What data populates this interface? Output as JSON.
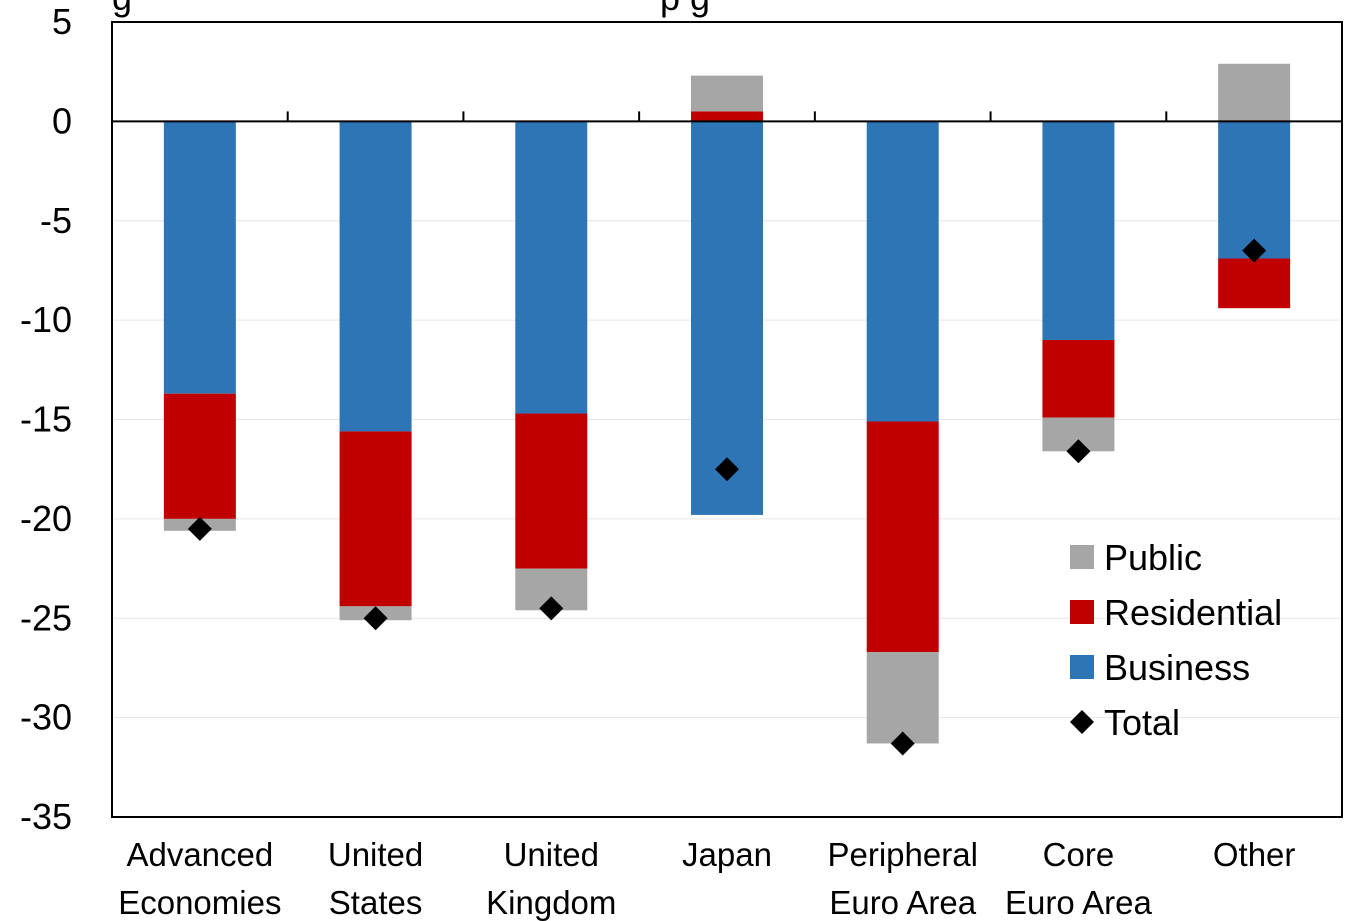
{
  "chart_data": {
    "type": "bar",
    "stacked": true,
    "title_fragment": "g",
    "title_fragment_2": "p g",
    "categories": [
      [
        "Advanced",
        "Economies"
      ],
      [
        "United",
        "States"
      ],
      [
        "United",
        "Kingdom"
      ],
      [
        "Japan"
      ],
      [
        "Peripheral",
        "Euro Area"
      ],
      [
        "Core",
        "Euro Area"
      ],
      [
        "Other"
      ]
    ],
    "series": [
      {
        "name": "Business",
        "color": "#2E75B6",
        "values": [
          -13.7,
          -15.6,
          -14.7,
          -19.8,
          -15.1,
          -11.0,
          -6.9
        ]
      },
      {
        "name": "Residential",
        "color": "#C00000",
        "values": [
          -6.3,
          -8.8,
          -7.8,
          0.5,
          -11.6,
          -3.9,
          -2.5
        ]
      },
      {
        "name": "Public",
        "color": "#A6A6A6",
        "values": [
          -0.6,
          -0.7,
          -2.1,
          1.8,
          -4.6,
          -1.7,
          2.9
        ]
      }
    ],
    "total": {
      "name": "Total",
      "values": [
        -20.5,
        -25.0,
        -24.5,
        -17.5,
        -31.3,
        -16.6,
        -6.5
      ]
    },
    "ylim": [
      -35,
      5
    ],
    "yticks": [
      "5",
      "0",
      "-5",
      "-10",
      "-15",
      "-20",
      "-25",
      "-30",
      "-35"
    ],
    "legend": [
      "Public",
      "Residential",
      "Business",
      "Total"
    ],
    "legend_position": "lower-right",
    "grid": true
  }
}
